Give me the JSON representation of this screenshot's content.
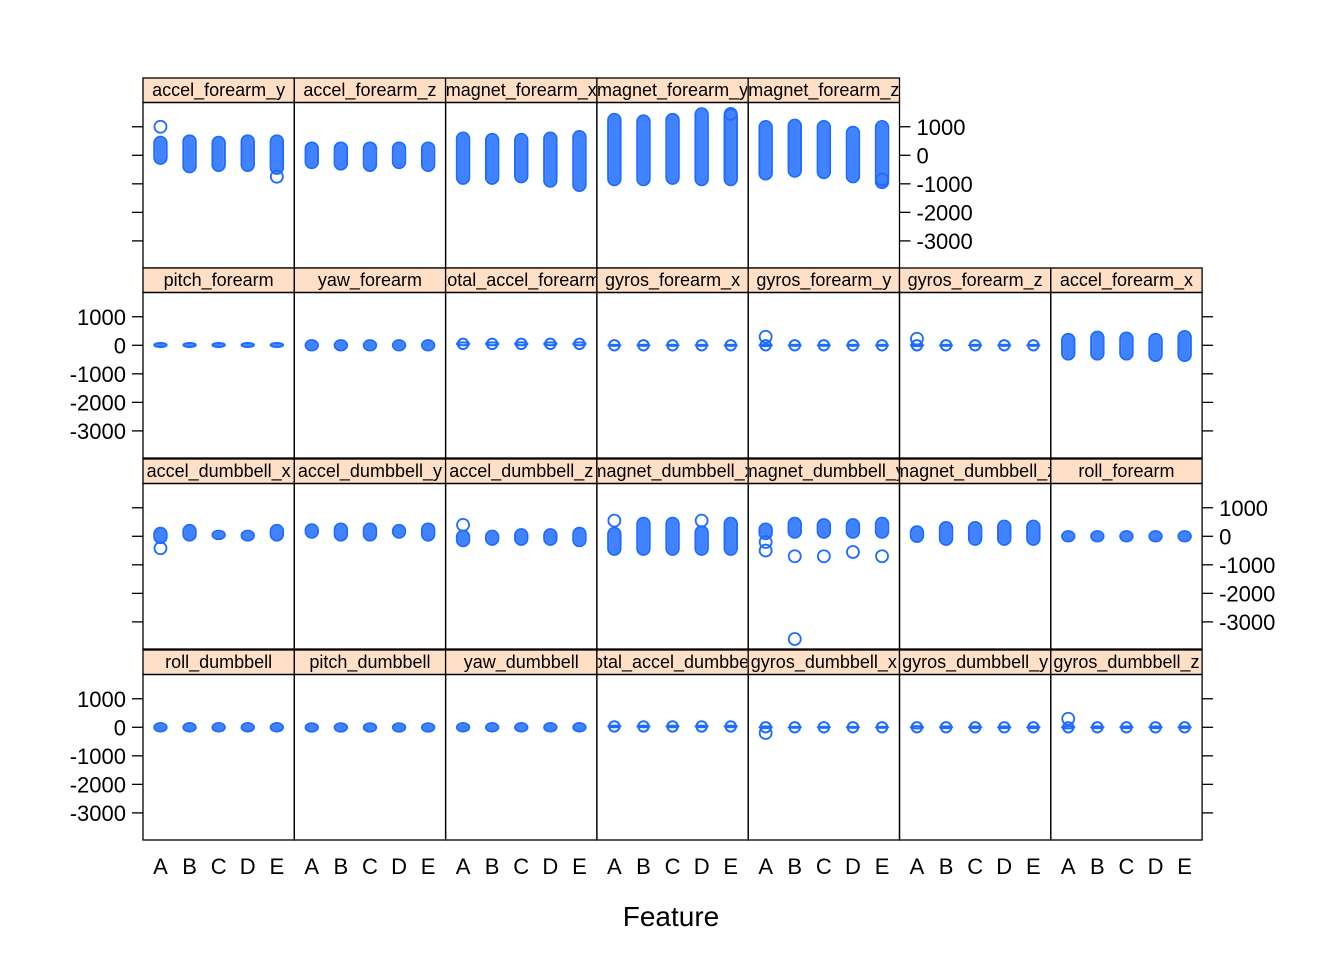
{
  "chart_data": {
    "type": "strip",
    "xlabel": "Feature",
    "ylabel": "",
    "categories": [
      "A",
      "B",
      "C",
      "D",
      "E"
    ],
    "yticks": [
      1000,
      0,
      -1000,
      -2000,
      -3000
    ],
    "ylim": [
      -3950,
      1850
    ],
    "colors": {
      "point": "#1e6cff",
      "strip": "#ffe0c6",
      "axis": "#000000"
    },
    "panels": [
      {
        "label": "accel_forearm_y",
        "row": 1,
        "col": 1,
        "ranges": [
          [
            -300,
            650
          ],
          [
            -600,
            700
          ],
          [
            -550,
            650
          ],
          [
            -550,
            700
          ],
          [
            -650,
            700
          ]
        ],
        "outliers": [
          [
            0,
            1000
          ],
          [
            4,
            -750
          ]
        ]
      },
      {
        "label": "accel_forearm_z",
        "row": 1,
        "col": 2,
        "ranges": [
          [
            -450,
            450
          ],
          [
            -500,
            450
          ],
          [
            -550,
            450
          ],
          [
            -450,
            450
          ],
          [
            -550,
            450
          ]
        ],
        "outliers": []
      },
      {
        "label": "magnet_forearm_x",
        "row": 1,
        "col": 3,
        "ranges": [
          [
            -1000,
            800
          ],
          [
            -1000,
            750
          ],
          [
            -950,
            750
          ],
          [
            -1100,
            800
          ],
          [
            -1250,
            850
          ]
        ],
        "outliers": []
      },
      {
        "label": "magnet_forearm_y",
        "row": 1,
        "col": 4,
        "ranges": [
          [
            -1050,
            1450
          ],
          [
            -1050,
            1400
          ],
          [
            -1000,
            1450
          ],
          [
            -1050,
            1650
          ],
          [
            -1050,
            1600
          ]
        ],
        "outliers": [
          [
            4,
            1450
          ]
        ]
      },
      {
        "label": "magnet_forearm_z",
        "row": 1,
        "col": 5,
        "ranges": [
          [
            -850,
            1200
          ],
          [
            -750,
            1250
          ],
          [
            -800,
            1200
          ],
          [
            -950,
            1000
          ],
          [
            -1150,
            1200
          ]
        ],
        "outliers": [
          [
            4,
            -850
          ]
        ]
      },
      {
        "label": "pitch_forearm",
        "row": 2,
        "col": 1,
        "ranges": [
          [
            -60,
            80
          ],
          [
            -60,
            80
          ],
          [
            -60,
            80
          ],
          [
            -60,
            80
          ],
          [
            -60,
            80
          ]
        ],
        "outliers": []
      },
      {
        "label": "yaw_forearm",
        "row": 2,
        "col": 2,
        "ranges": [
          [
            -180,
            180
          ],
          [
            -180,
            180
          ],
          [
            -180,
            180
          ],
          [
            -180,
            180
          ],
          [
            -180,
            180
          ]
        ],
        "outliers": []
      },
      {
        "label": "total_accel_forearm",
        "row": 2,
        "col": 3,
        "ranges": [
          [
            0,
            100
          ],
          [
            0,
            100
          ],
          [
            0,
            100
          ],
          [
            0,
            100
          ],
          [
            0,
            100
          ]
        ],
        "outliers": []
      },
      {
        "label": "gyros_forearm_x",
        "row": 2,
        "col": 4,
        "ranges": [
          [
            -20,
            20
          ],
          [
            -20,
            20
          ],
          [
            -20,
            20
          ],
          [
            -20,
            20
          ],
          [
            -20,
            20
          ]
        ],
        "outliers": []
      },
      {
        "label": "gyros_forearm_y",
        "row": 2,
        "col": 5,
        "ranges": [
          [
            -30,
            30
          ],
          [
            -20,
            20
          ],
          [
            -20,
            20
          ],
          [
            -20,
            20
          ],
          [
            -20,
            20
          ]
        ],
        "outliers": [
          [
            0,
            300
          ]
        ]
      },
      {
        "label": "gyros_forearm_z",
        "row": 2,
        "col": 6,
        "ranges": [
          [
            -30,
            30
          ],
          [
            -20,
            20
          ],
          [
            -20,
            20
          ],
          [
            -20,
            20
          ],
          [
            -20,
            20
          ]
        ],
        "outliers": [
          [
            0,
            230
          ]
        ]
      },
      {
        "label": "accel_forearm_x",
        "row": 2,
        "col": 7,
        "ranges": [
          [
            -500,
            400
          ],
          [
            -500,
            480
          ],
          [
            -500,
            450
          ],
          [
            -550,
            400
          ],
          [
            -550,
            500
          ]
        ],
        "outliers": []
      },
      {
        "label": "accel_dumbbell_x",
        "row": 3,
        "col": 1,
        "ranges": [
          [
            -240,
            300
          ],
          [
            -150,
            400
          ],
          [
            -100,
            200
          ],
          [
            -150,
            200
          ],
          [
            -150,
            400
          ]
        ],
        "outliers": [
          [
            0,
            -420
          ]
        ]
      },
      {
        "label": "accel_dumbbell_y",
        "row": 3,
        "col": 2,
        "ranges": [
          [
            -50,
            420
          ],
          [
            -150,
            450
          ],
          [
            -150,
            450
          ],
          [
            -50,
            400
          ],
          [
            -150,
            450
          ]
        ],
        "outliers": []
      },
      {
        "label": "accel_dumbbell_z",
        "row": 3,
        "col": 3,
        "ranges": [
          [
            -350,
            200
          ],
          [
            -300,
            200
          ],
          [
            -300,
            250
          ],
          [
            -300,
            250
          ],
          [
            -350,
            300
          ]
        ],
        "outliers": [
          [
            0,
            400
          ]
        ]
      },
      {
        "label": "magnet_dumbbell_x",
        "row": 3,
        "col": 4,
        "ranges": [
          [
            -650,
            300
          ],
          [
            -650,
            650
          ],
          [
            -650,
            650
          ],
          [
            -650,
            350
          ],
          [
            -650,
            650
          ]
        ],
        "outliers": [
          [
            0,
            550
          ],
          [
            3,
            550
          ]
        ]
      },
      {
        "label": "magnet_dumbbell_y",
        "row": 3,
        "col": 5,
        "ranges": [
          [
            -100,
            450
          ],
          [
            -50,
            650
          ],
          [
            -50,
            600
          ],
          [
            -50,
            600
          ],
          [
            -50,
            650
          ]
        ],
        "outliers": [
          [
            0,
            -500
          ],
          [
            1,
            -700
          ],
          [
            2,
            -700
          ],
          [
            3,
            -550
          ],
          [
            4,
            -700
          ],
          [
            1,
            -3600
          ],
          [
            0,
            -200
          ]
        ]
      },
      {
        "label": "magnet_dumbbell_z",
        "row": 3,
        "col": 6,
        "ranges": [
          [
            -200,
            350
          ],
          [
            -300,
            500
          ],
          [
            -300,
            500
          ],
          [
            -300,
            550
          ],
          [
            -300,
            550
          ]
        ],
        "outliers": []
      },
      {
        "label": "roll_forearm",
        "row": 3,
        "col": 7,
        "ranges": [
          [
            -180,
            180
          ],
          [
            -180,
            180
          ],
          [
            -180,
            180
          ],
          [
            -180,
            180
          ],
          [
            -180,
            180
          ]
        ],
        "outliers": []
      },
      {
        "label": "roll_dumbbell",
        "row": 4,
        "col": 1,
        "ranges": [
          [
            -150,
            150
          ],
          [
            -150,
            150
          ],
          [
            -150,
            150
          ],
          [
            -150,
            150
          ],
          [
            -150,
            150
          ]
        ],
        "outliers": []
      },
      {
        "label": "pitch_dumbbell",
        "row": 4,
        "col": 2,
        "ranges": [
          [
            -150,
            140
          ],
          [
            -150,
            140
          ],
          [
            -150,
            140
          ],
          [
            -150,
            140
          ],
          [
            -150,
            140
          ]
        ],
        "outliers": []
      },
      {
        "label": "yaw_dumbbell",
        "row": 4,
        "col": 3,
        "ranges": [
          [
            -150,
            150
          ],
          [
            -150,
            150
          ],
          [
            -150,
            150
          ],
          [
            -150,
            150
          ],
          [
            -150,
            150
          ]
        ],
        "outliers": []
      },
      {
        "label": "total_accel_dumbbell",
        "row": 4,
        "col": 4,
        "ranges": [
          [
            0,
            60
          ],
          [
            0,
            60
          ],
          [
            0,
            60
          ],
          [
            0,
            60
          ],
          [
            0,
            60
          ]
        ],
        "outliers": []
      },
      {
        "label": "gyros_dumbbell_x",
        "row": 4,
        "col": 5,
        "ranges": [
          [
            -30,
            30
          ],
          [
            -20,
            20
          ],
          [
            -20,
            20
          ],
          [
            -20,
            20
          ],
          [
            -20,
            20
          ]
        ],
        "outliers": [
          [
            0,
            -200
          ]
        ]
      },
      {
        "label": "gyros_dumbbell_y",
        "row": 4,
        "col": 6,
        "ranges": [
          [
            -40,
            40
          ],
          [
            -30,
            30
          ],
          [
            -30,
            30
          ],
          [
            -30,
            30
          ],
          [
            -30,
            30
          ]
        ],
        "outliers": []
      },
      {
        "label": "gyros_dumbbell_z",
        "row": 4,
        "col": 7,
        "ranges": [
          [
            -40,
            40
          ],
          [
            -30,
            30
          ],
          [
            -30,
            30
          ],
          [
            -30,
            30
          ],
          [
            -30,
            30
          ]
        ],
        "outliers": [
          [
            0,
            300
          ]
        ]
      }
    ]
  }
}
